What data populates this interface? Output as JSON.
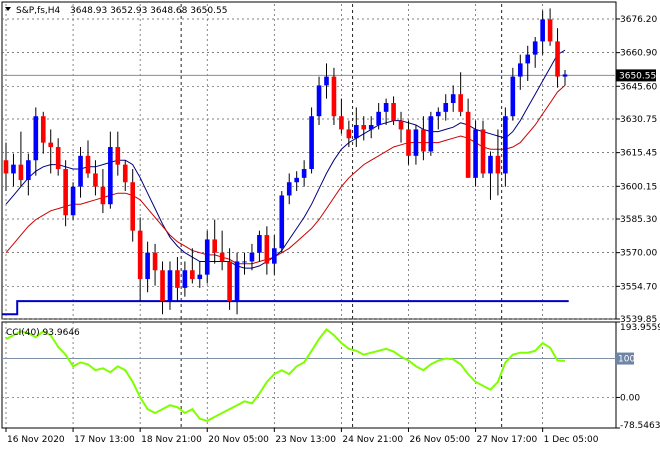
{
  "header": {
    "symbol": "S&P,fs,H4",
    "ohlc": "3648.93 3652.93 3648.68 3650.55"
  },
  "colors": {
    "up": "#0000ff",
    "down": "#ff0000",
    "wick": "#000000",
    "fast_ma": "#000080",
    "slow_ma": "#cc0000",
    "stop_line": "#0000cc",
    "cci": "#7fff00",
    "grid": "#555555",
    "price_tag_bg": "#000000",
    "price_tag_fg": "#ffffff"
  },
  "chart_data": [
    {
      "type": "candlestick",
      "title": "S&P,fs,H4",
      "ylim": [
        3539.85,
        3683.0
      ],
      "y_ticks": [
        "3676.20",
        "3660.90",
        "3645.60",
        "3630.75",
        "3615.45",
        "3600.15",
        "3585.30",
        "3570.00",
        "3554.70",
        "3539.85"
      ],
      "y_tick_values": [
        3676.2,
        3660.9,
        3645.6,
        3630.75,
        3615.45,
        3600.15,
        3585.3,
        3570.0,
        3554.7,
        3539.85
      ],
      "current_price": "3650.55",
      "x_labels": [
        "16 Nov 2020",
        "17 Nov 13:00",
        "18 Nov 21:00",
        "20 Nov 05:00",
        "23 Nov 13:00",
        "24 Nov 21:00",
        "26 Nov 05:00",
        "27 Nov 17:00",
        "1 Dec 05:00"
      ],
      "grid": true,
      "candles": [
        [
          3612,
          3620,
          3598,
          3606
        ],
        [
          3606,
          3615,
          3600,
          3610
        ],
        [
          3610,
          3625,
          3600,
          3603
        ],
        [
          3603,
          3615,
          3596,
          3612
        ],
        [
          3612,
          3636,
          3605,
          3632
        ],
        [
          3632,
          3634,
          3615,
          3620
        ],
        [
          3620,
          3626,
          3606,
          3618
        ],
        [
          3618,
          3622,
          3605,
          3608
        ],
        [
          3608,
          3612,
          3582,
          3587
        ],
        [
          3587,
          3602,
          3585,
          3600
        ],
        [
          3600,
          3618,
          3595,
          3614
        ],
        [
          3614,
          3621,
          3604,
          3606
        ],
        [
          3606,
          3612,
          3596,
          3600
        ],
        [
          3600,
          3608,
          3588,
          3592
        ],
        [
          3592,
          3625,
          3590,
          3618
        ],
        [
          3618,
          3625,
          3605,
          3610
        ],
        [
          3610,
          3612,
          3598,
          3602
        ],
        [
          3602,
          3608,
          3575,
          3580
        ],
        [
          3580,
          3586,
          3548,
          3558
        ],
        [
          3558,
          3575,
          3552,
          3570
        ],
        [
          3570,
          3574,
          3555,
          3562
        ],
        [
          3562,
          3566,
          3542,
          3548
        ],
        [
          3548,
          3566,
          3544,
          3562
        ],
        [
          3562,
          3568,
          3548,
          3554
        ],
        [
          3554,
          3566,
          3550,
          3562
        ],
        [
          3562,
          3572,
          3556,
          3558
        ],
        [
          3558,
          3566,
          3554,
          3560
        ],
        [
          3560,
          3580,
          3556,
          3576
        ],
        [
          3576,
          3585,
          3565,
          3570
        ],
        [
          3570,
          3580,
          3562,
          3566
        ],
        [
          3566,
          3572,
          3544,
          3548
        ],
        [
          3548,
          3570,
          3542,
          3566
        ],
        [
          3566,
          3570,
          3560,
          3566
        ],
        [
          3566,
          3574,
          3562,
          3570
        ],
        [
          3570,
          3580,
          3566,
          3578
        ],
        [
          3578,
          3582,
          3560,
          3565
        ],
        [
          3565,
          3578,
          3560,
          3572
        ],
        [
          3572,
          3598,
          3570,
          3596
        ],
        [
          3596,
          3606,
          3592,
          3602
        ],
        [
          3602,
          3607,
          3598,
          3604
        ],
        [
          3604,
          3612,
          3600,
          3608
        ],
        [
          3608,
          3636,
          3606,
          3632
        ],
        [
          3632,
          3650,
          3628,
          3646
        ],
        [
          3646,
          3656,
          3640,
          3650
        ],
        [
          3650,
          3654,
          3628,
          3632
        ],
        [
          3632,
          3640,
          3624,
          3626
        ],
        [
          3626,
          3630,
          3618,
          3622
        ],
        [
          3622,
          3636,
          3618,
          3628
        ],
        [
          3628,
          3632,
          3621,
          3626
        ],
        [
          3626,
          3632,
          3622,
          3628
        ],
        [
          3628,
          3638,
          3626,
          3634
        ],
        [
          3634,
          3640,
          3628,
          3638
        ],
        [
          3638,
          3641,
          3628,
          3630
        ],
        [
          3630,
          3634,
          3620,
          3626
        ],
        [
          3626,
          3630,
          3610,
          3614
        ],
        [
          3614,
          3628,
          3610,
          3626
        ],
        [
          3626,
          3632,
          3612,
          3616
        ],
        [
          3616,
          3634,
          3614,
          3632
        ],
        [
          3632,
          3636,
          3626,
          3634
        ],
        [
          3634,
          3642,
          3630,
          3638
        ],
        [
          3638,
          3646,
          3634,
          3642
        ],
        [
          3642,
          3652,
          3632,
          3634
        ],
        [
          3634,
          3640,
          3604,
          3604
        ],
        [
          3604,
          3630,
          3600,
          3626
        ],
        [
          3626,
          3630,
          3604,
          3606
        ],
        [
          3606,
          3616,
          3594,
          3614
        ],
        [
          3614,
          3626,
          3596,
          3606
        ],
        [
          3606,
          3636,
          3600,
          3632
        ],
        [
          3632,
          3654,
          3630,
          3650
        ],
        [
          3650,
          3660,
          3644,
          3656
        ],
        [
          3656,
          3664,
          3648,
          3660
        ],
        [
          3660,
          3668,
          3654,
          3666
        ],
        [
          3666,
          3680,
          3660,
          3676
        ],
        [
          3676,
          3681,
          3664,
          3666
        ],
        [
          3666,
          3672,
          3645,
          3650
        ],
        [
          3650,
          3653,
          3646,
          3651
        ]
      ],
      "series": [
        {
          "values": [
            3592,
            3596,
            3600,
            3604,
            3607,
            3609,
            3610,
            3610,
            3609,
            3608,
            3608,
            3609,
            3609,
            3610,
            3611,
            3612,
            3612,
            3610,
            3604,
            3597,
            3590,
            3583,
            3577,
            3573,
            3570,
            3568,
            3566,
            3566,
            3566,
            3566,
            3566,
            3564,
            3563,
            3563,
            3564,
            3566,
            3568,
            3571,
            3576,
            3581,
            3586,
            3592,
            3599,
            3606,
            3612,
            3617,
            3620,
            3622,
            3624,
            3626,
            3628,
            3629,
            3630,
            3630,
            3629,
            3628,
            3626,
            3625,
            3625,
            3626,
            3627,
            3629,
            3628,
            3626,
            3625,
            3624,
            3623,
            3622,
            3625,
            3630,
            3636,
            3642,
            3648,
            3654,
            3660,
            3662
          ]
        },
        {
          "values": [
            3570,
            3574,
            3578,
            3582,
            3585,
            3587,
            3589,
            3590,
            3591,
            3592,
            3592,
            3593,
            3594,
            3595,
            3596,
            3597,
            3597,
            3596,
            3594,
            3590,
            3586,
            3582,
            3578,
            3575,
            3573,
            3571,
            3570,
            3569,
            3569,
            3568,
            3567,
            3565,
            3565,
            3565,
            3566,
            3567,
            3568,
            3570,
            3572,
            3575,
            3578,
            3581,
            3585,
            3590,
            3595,
            3600,
            3604,
            3607,
            3610,
            3612,
            3614,
            3616,
            3618,
            3619,
            3620,
            3620,
            3620,
            3620,
            3620,
            3621,
            3622,
            3623,
            3622,
            3620,
            3618,
            3617,
            3617,
            3617,
            3618,
            3620,
            3624,
            3628,
            3633,
            3638,
            3643,
            3646
          ]
        },
        {
          "values": [
            3542,
            3542,
            3548,
            3548,
            3548,
            3548,
            3548,
            3548,
            3548,
            3548,
            3548,
            3548,
            3548,
            3548,
            3548,
            3548,
            3548,
            3548,
            3548,
            3548,
            3548,
            3548,
            3548,
            3548,
            3548,
            3548,
            3548,
            3548,
            3548,
            3548,
            3548,
            3548,
            3548,
            3548,
            3548,
            3548,
            3548,
            3548,
            3548,
            3548,
            3548,
            3548,
            3548,
            3548,
            3548,
            3548,
            3548,
            3548,
            3548,
            3548,
            3548,
            3548,
            3548,
            3548,
            3548,
            3548,
            3548,
            3548,
            3548,
            3548,
            3548,
            3548,
            3548,
            3548,
            3548,
            3548,
            3548,
            3548,
            3548,
            3548,
            3548,
            3548,
            3548,
            3548,
            3548,
            3548
          ]
        }
      ]
    },
    {
      "type": "line",
      "title": "CCI(40) 93.9646",
      "ylim": [
        -78.5463,
        193.9559
      ],
      "y_ticks": [
        "193.9559",
        "100",
        "0.00",
        "-78.5463"
      ],
      "y_tick_values": [
        193.9559,
        100,
        0,
        -78.5463
      ],
      "grid": true,
      "series": [
        {
          "name": "CCI(40) 93.9646",
          "values": [
            150,
            160,
            170,
            165,
            155,
            170,
            160,
            130,
            110,
            80,
            90,
            85,
            70,
            75,
            65,
            80,
            70,
            40,
            0,
            -30,
            -40,
            -30,
            -20,
            -25,
            -40,
            -30,
            -55,
            -60,
            -50,
            -40,
            -30,
            -20,
            -10,
            -15,
            10,
            40,
            60,
            70,
            60,
            80,
            90,
            120,
            150,
            175,
            160,
            140,
            125,
            120,
            110,
            115,
            120,
            125,
            118,
            105,
            95,
            80,
            70,
            85,
            95,
            100,
            98,
            85,
            60,
            40,
            30,
            20,
            40,
            90,
            110,
            115,
            115,
            120,
            140,
            128,
            95,
            94
          ]
        }
      ]
    }
  ],
  "price_header_stop_values": [
    3542,
    3548,
    3548,
    3548
  ]
}
